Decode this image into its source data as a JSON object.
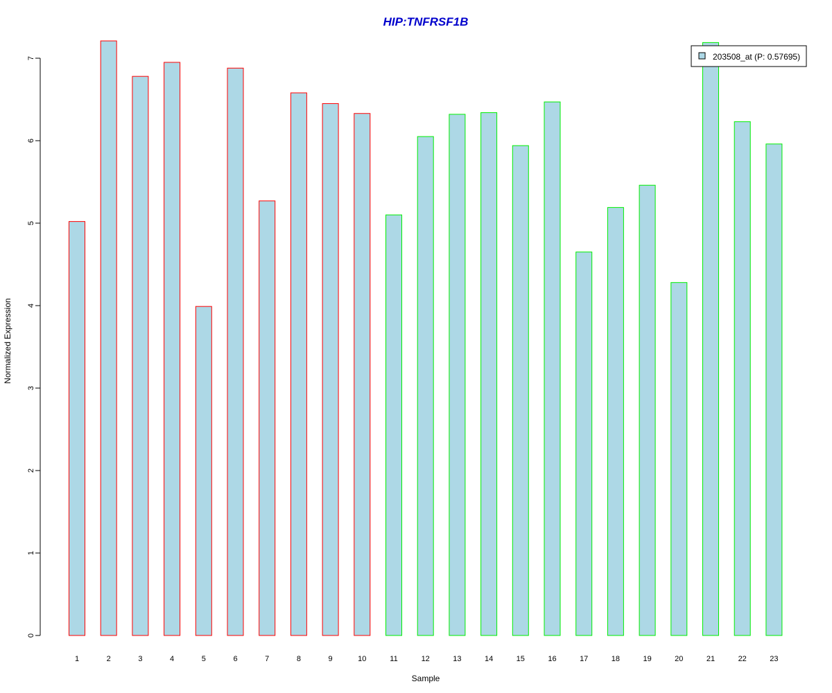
{
  "chart_data": {
    "type": "bar",
    "title": "HIP:TNFRSF1B",
    "xlabel": "Sample",
    "ylabel": "Normalized Expression",
    "categories": [
      "1",
      "2",
      "3",
      "4",
      "5",
      "6",
      "7",
      "8",
      "9",
      "10",
      "11",
      "12",
      "13",
      "14",
      "15",
      "16",
      "17",
      "18",
      "19",
      "20",
      "21",
      "22",
      "23"
    ],
    "series": [
      {
        "name": "203508_at (P: 0.57695)",
        "values": [
          5.02,
          7.21,
          6.78,
          6.95,
          3.99,
          6.88,
          5.27,
          6.58,
          6.45,
          6.33,
          5.1,
          6.05,
          6.32,
          6.34,
          5.94,
          6.47,
          4.65,
          5.19,
          5.46,
          4.28,
          7.19,
          6.23,
          5.96
        ]
      }
    ],
    "groups": [
      {
        "border_color": "#ff0000",
        "count": 10
      },
      {
        "border_color": "#00ee00",
        "count": 13
      }
    ],
    "yticks": [
      0,
      1,
      2,
      3,
      4,
      5,
      6,
      7
    ],
    "ylim": [
      0,
      7.3
    ],
    "legend_position": "top-right",
    "grid": false,
    "colors": {
      "bar_fill": "#add8e6",
      "title": "#0000cc",
      "axis": "#000000"
    }
  }
}
